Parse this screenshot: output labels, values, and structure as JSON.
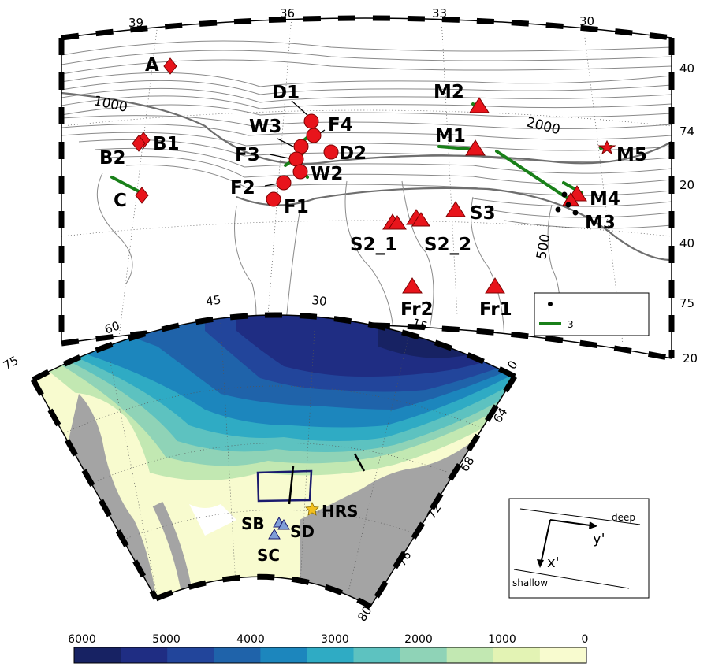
{
  "colors": {
    "mooring_marker": "#e8141b",
    "current_vector": "#198019",
    "land": "#a4a4a4",
    "box": "#1b1b6e",
    "star": "#f2c01e",
    "seal": "#7f9ed8"
  },
  "upper_map": {
    "lon_ticks": [
      "39",
      "36",
      "33",
      "30"
    ],
    "lat_ticks": [
      "40",
      "74",
      "20",
      "40",
      "75",
      "20"
    ],
    "contour_labels": [
      "1000",
      "2000",
      "500"
    ],
    "stations": {
      "A": "A",
      "B1": "B1",
      "B2": "B2",
      "C": "C",
      "D1": "D1",
      "D2": "D2",
      "F1": "F1",
      "F2": "F2",
      "F3": "F3",
      "F4": "F4",
      "W2": "W2",
      "W3": "W3",
      "M1": "M1",
      "M2": "M2",
      "M3": "M3",
      "M4": "M4",
      "M5": "M5",
      "S2_1": "S2_1",
      "S2_2": "S2_2",
      "S3": "S3",
      "Fr1": "Fr1",
      "Fr2": "Fr2"
    },
    "legend": {
      "dot_label": "",
      "line_label": "3"
    }
  },
  "lower_map": {
    "lon_ticks": [
      "60",
      "45",
      "30",
      "15",
      "0"
    ],
    "lat_ticks": [
      "75",
      "64",
      "68",
      "72",
      "76",
      "80"
    ],
    "labels": {
      "HRS": "HRS",
      "SB": "SB",
      "SD": "SD",
      "SC": "SC"
    }
  },
  "inset": {
    "deep": "deep",
    "shallow": "shallow",
    "y_axis": "y'",
    "x_axis": "x'"
  },
  "colorbar": {
    "ticks": [
      "6000",
      "5000",
      "4000",
      "3000",
      "2000",
      "1000",
      "0"
    ],
    "colors": [
      "#172263",
      "#1f2d83",
      "#22459b",
      "#1f63aa",
      "#1c86bd",
      "#2fabc4",
      "#5dc2c0",
      "#8fd3b7",
      "#c2e8b2",
      "#e3f3b4",
      "#f8fbcf"
    ]
  }
}
